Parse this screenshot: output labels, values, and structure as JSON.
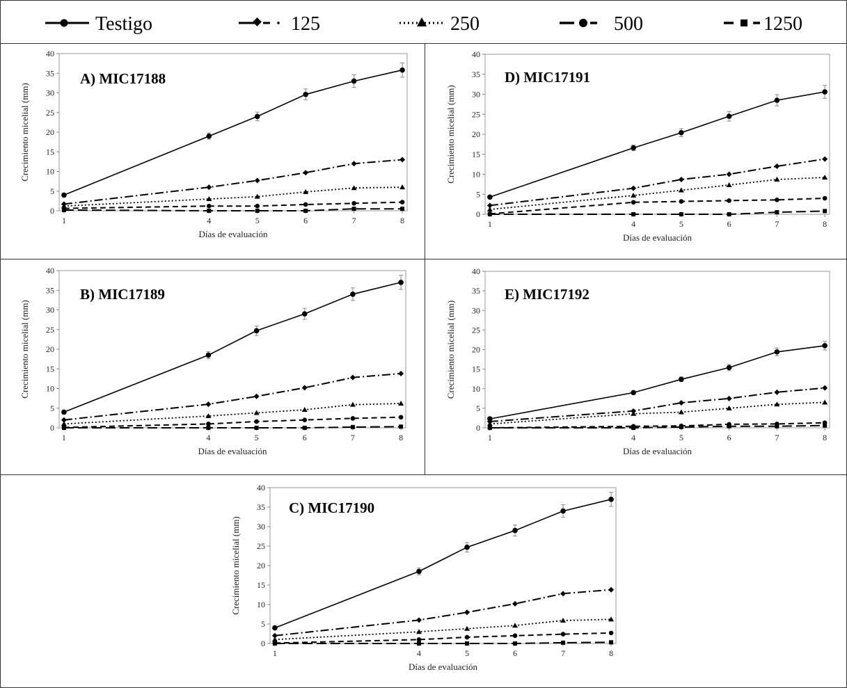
{
  "legend": [
    {
      "label": "Testigo",
      "style": "solid",
      "marker": "circle"
    },
    {
      "label": "125",
      "style": "dashdot",
      "marker": "diamond"
    },
    {
      "label": "250",
      "style": "dotted",
      "marker": "triangle"
    },
    {
      "label": "500",
      "style": "dashed",
      "marker": "circle"
    },
    {
      "label": "1250",
      "style": "longdash",
      "marker": "square"
    }
  ],
  "colors": {
    "series": "#000000",
    "axis": "#888888",
    "border": "#333333"
  },
  "chart_data": [
    {
      "id": "A",
      "type": "line",
      "title": "A) MIC17188",
      "xlabel": "Días de evaluación",
      "ylabel": "Crecimiento micelial (mm)",
      "x": [
        1,
        4,
        5,
        6,
        7,
        8
      ],
      "xticks": [
        1,
        4,
        5,
        6,
        7,
        8
      ],
      "ylim": [
        0,
        40
      ],
      "yticks": [
        0,
        5,
        10,
        15,
        20,
        25,
        30,
        35,
        40
      ],
      "series": [
        {
          "name": "Testigo",
          "values": [
            4,
            19,
            24,
            29.6,
            33,
            35.8
          ],
          "errors": [
            0,
            0.8,
            1.1,
            1.4,
            1.6,
            1.8
          ]
        },
        {
          "name": "125",
          "values": [
            1.7,
            6,
            7.7,
            9.7,
            12,
            13
          ],
          "errors": [
            0,
            0,
            0,
            0,
            0,
            0
          ]
        },
        {
          "name": "250",
          "values": [
            1.2,
            3,
            3.6,
            4.8,
            5.8,
            6
          ],
          "errors": [
            0,
            0,
            0,
            0,
            0,
            0
          ]
        },
        {
          "name": "500",
          "values": [
            0.6,
            1.2,
            1.2,
            1.6,
            1.9,
            2.2
          ],
          "errors": [
            0,
            0,
            0,
            0,
            0,
            0
          ]
        },
        {
          "name": "1250",
          "values": [
            0.2,
            0,
            0,
            0,
            0.5,
            0.5
          ],
          "errors": [
            0,
            0,
            0,
            0,
            0,
            0
          ]
        }
      ]
    },
    {
      "id": "D",
      "type": "line",
      "title": "D) MIC17191",
      "xlabel": "Días de evaluación",
      "ylabel": "Crecimiento micelial (mm)",
      "x": [
        1,
        4,
        5,
        6,
        7,
        8
      ],
      "xticks": [
        1,
        4,
        5,
        6,
        7,
        8
      ],
      "ylim": [
        0,
        40
      ],
      "yticks": [
        0,
        5,
        10,
        15,
        20,
        25,
        30,
        35,
        40
      ],
      "series": [
        {
          "name": "Testigo",
          "values": [
            4.3,
            16.6,
            20.4,
            24.5,
            28.5,
            30.6
          ],
          "errors": [
            0,
            0.7,
            1,
            1.2,
            1.4,
            1.6
          ]
        },
        {
          "name": "125",
          "values": [
            2.2,
            6.5,
            8.7,
            10,
            12,
            13.8
          ],
          "errors": [
            0,
            0,
            0,
            0,
            0,
            0
          ]
        },
        {
          "name": "250",
          "values": [
            1.2,
            4.7,
            6,
            7.3,
            8.7,
            9.2
          ],
          "errors": [
            0,
            0,
            0,
            0,
            0,
            0
          ]
        },
        {
          "name": "500",
          "values": [
            0.1,
            3,
            3.2,
            3.4,
            3.6,
            4
          ],
          "errors": [
            0,
            0,
            0,
            0,
            0,
            0
          ]
        },
        {
          "name": "1250",
          "values": [
            0,
            0,
            0,
            0,
            0.5,
            0.8
          ],
          "errors": [
            0,
            0,
            0,
            0,
            0,
            0
          ]
        }
      ]
    },
    {
      "id": "B",
      "type": "line",
      "title": "B) MIC17189",
      "xlabel": "Días de evaluación",
      "ylabel": "Crecimiento micelial (mm)",
      "x": [
        1,
        4,
        5,
        6,
        7,
        8
      ],
      "xticks": [
        1,
        4,
        5,
        6,
        7,
        8
      ],
      "ylim": [
        0,
        40
      ],
      "yticks": [
        0,
        5,
        10,
        15,
        20,
        25,
        30,
        35,
        40
      ],
      "series": [
        {
          "name": "Testigo",
          "values": [
            4,
            18.5,
            24.7,
            29,
            34,
            37
          ],
          "errors": [
            0,
            0.9,
            1.2,
            1.4,
            1.6,
            1.8
          ]
        },
        {
          "name": "125",
          "values": [
            2,
            6,
            8,
            10.2,
            12.8,
            13.8
          ],
          "errors": [
            0,
            0,
            0,
            0,
            0,
            0
          ]
        },
        {
          "name": "250",
          "values": [
            1,
            3,
            3.8,
            4.6,
            5.9,
            6.2
          ],
          "errors": [
            0,
            0,
            0,
            0,
            0,
            0
          ]
        },
        {
          "name": "500",
          "values": [
            0.1,
            1,
            1.6,
            2,
            2.4,
            2.7
          ],
          "errors": [
            0,
            0,
            0,
            0,
            0,
            0
          ]
        },
        {
          "name": "1250",
          "values": [
            0,
            0,
            0,
            0,
            0.2,
            0.3
          ],
          "errors": [
            0,
            0,
            0,
            0,
            0,
            0
          ]
        }
      ]
    },
    {
      "id": "E",
      "type": "line",
      "title": "E) MIC17192",
      "xlabel": "Días de evaluación",
      "ylabel": "Crecimiento micelial (mm)",
      "x": [
        1,
        4,
        5,
        6,
        7,
        8
      ],
      "xticks": [
        1,
        4,
        5,
        6,
        7,
        8
      ],
      "ylim": [
        0,
        40
      ],
      "yticks": [
        0,
        5,
        10,
        15,
        20,
        25,
        30,
        35,
        40
      ],
      "series": [
        {
          "name": "Testigo",
          "values": [
            2.3,
            9,
            12.4,
            15.4,
            19.4,
            21
          ],
          "errors": [
            0,
            0.4,
            0.6,
            0.8,
            1,
            1.1
          ]
        },
        {
          "name": "125",
          "values": [
            1.6,
            4.3,
            6.4,
            7.5,
            9.1,
            10.2
          ],
          "errors": [
            0,
            0,
            0,
            0,
            0,
            0
          ]
        },
        {
          "name": "250",
          "values": [
            1,
            3.6,
            4,
            5,
            6,
            6.5
          ],
          "errors": [
            0,
            0,
            0,
            0,
            0,
            0
          ]
        },
        {
          "name": "500",
          "values": [
            0,
            0.4,
            0.5,
            0.9,
            1,
            1.3
          ],
          "errors": [
            0,
            0,
            0,
            0,
            0,
            0
          ]
        },
        {
          "name": "1250",
          "values": [
            0,
            0,
            0.2,
            0.4,
            0.4,
            0.6
          ],
          "errors": [
            0,
            0,
            0,
            0,
            0,
            0
          ]
        }
      ]
    },
    {
      "id": "C",
      "type": "line",
      "title": "C) MIC17190",
      "xlabel": "Días de evaluación",
      "ylabel": "Crecimiento micelial (mm)",
      "x": [
        1,
        4,
        5,
        6,
        7,
        8
      ],
      "xticks": [
        1,
        4,
        5,
        6,
        7,
        8
      ],
      "ylim": [
        0,
        40
      ],
      "yticks": [
        0,
        5,
        10,
        15,
        20,
        25,
        30,
        35,
        40
      ],
      "series": [
        {
          "name": "Testigo",
          "values": [
            4,
            18.5,
            24.7,
            29,
            34,
            37
          ],
          "errors": [
            0,
            0.9,
            1.2,
            1.4,
            1.6,
            1.8
          ]
        },
        {
          "name": "125",
          "values": [
            2,
            6,
            8,
            10.2,
            12.8,
            13.8
          ],
          "errors": [
            0,
            0,
            0,
            0,
            0,
            0
          ]
        },
        {
          "name": "250",
          "values": [
            1,
            3,
            3.8,
            4.6,
            5.9,
            6.2
          ],
          "errors": [
            0,
            0,
            0,
            0,
            0,
            0
          ]
        },
        {
          "name": "500",
          "values": [
            0.1,
            1,
            1.6,
            2,
            2.4,
            2.7
          ],
          "errors": [
            0,
            0,
            0,
            0,
            0,
            0
          ]
        },
        {
          "name": "1250",
          "values": [
            0,
            0,
            0,
            0,
            0.2,
            0.3
          ],
          "errors": [
            0,
            0,
            0,
            0,
            0,
            0
          ]
        }
      ]
    }
  ]
}
